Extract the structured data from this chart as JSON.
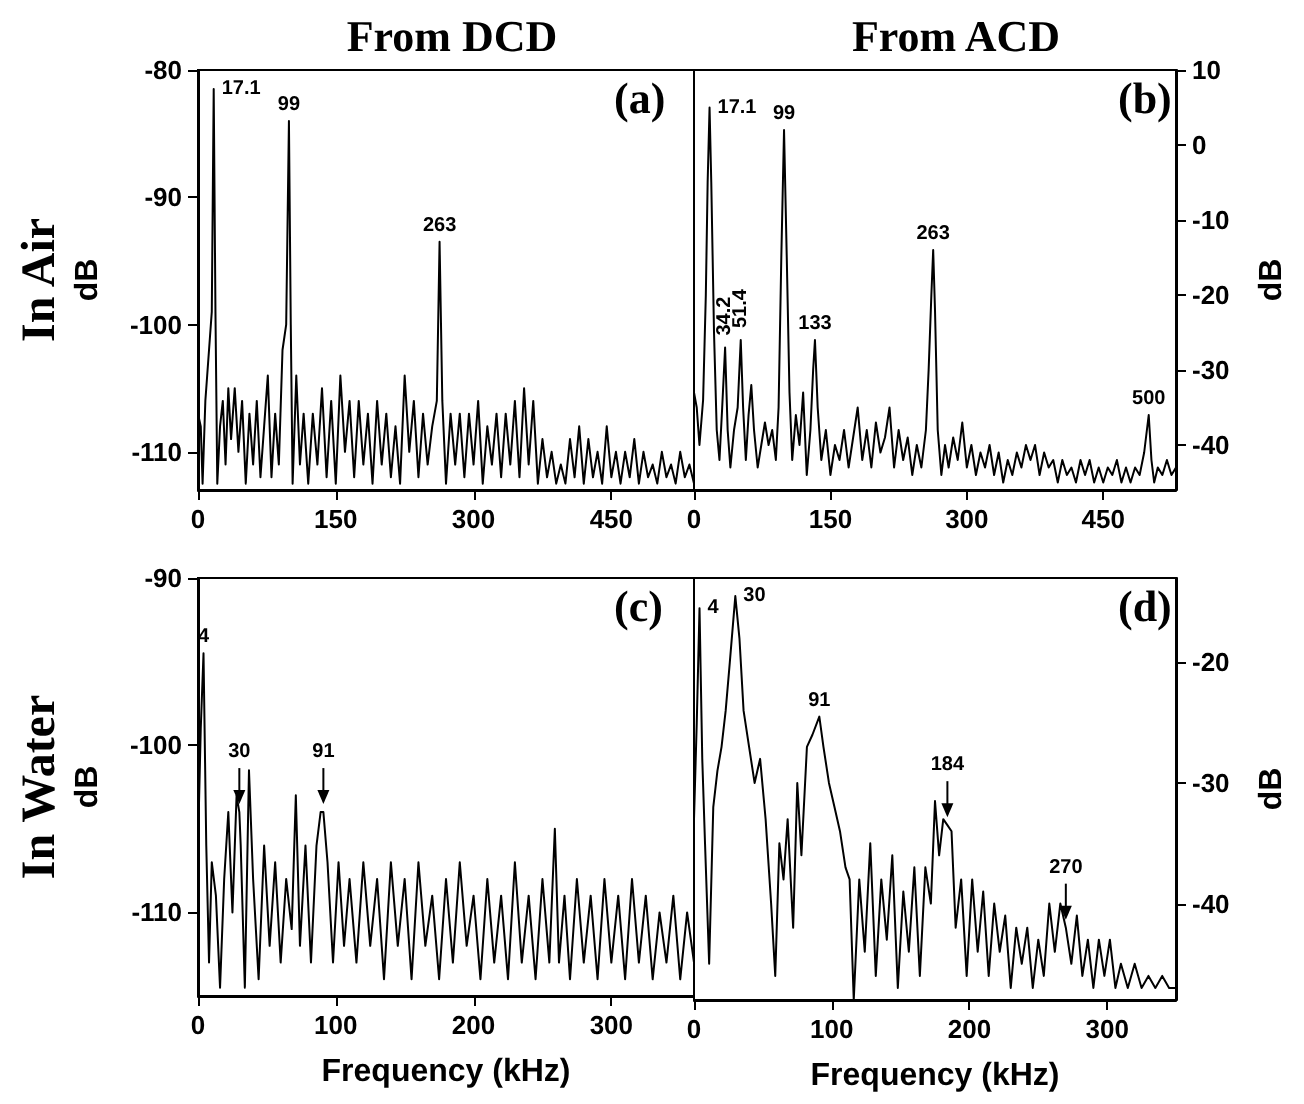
{
  "chart_data": [
    {
      "type": "line",
      "title": "From DCD",
      "ylabel": "In Air\ndB",
      "xlim": [
        0,
        540
      ],
      "xticks": [
        0,
        150,
        300,
        450
      ],
      "ylim": [
        -113,
        -80
      ],
      "yticks": [
        -110,
        -100,
        -90,
        -80
      ],
      "annotations": [
        "(a)",
        {
          "text": "17.1",
          "x": 17.1,
          "y": -81.5
        },
        {
          "text": "99",
          "x": 99,
          "y": -84
        },
        {
          "text": "263",
          "x": 263,
          "y": -93.5
        }
      ],
      "series": [
        {
          "color": "#000000",
          "x": [
            0,
            3,
            5,
            8,
            10,
            13,
            15,
            17.1,
            19,
            21,
            24,
            27,
            30,
            33,
            36,
            40,
            44,
            48,
            52,
            56,
            60,
            64,
            68,
            72,
            76,
            80,
            84,
            88,
            92,
            96,
            99,
            101,
            103,
            107,
            111,
            115,
            120,
            125,
            130,
            135,
            140,
            145,
            150,
            155,
            160,
            165,
            170,
            175,
            180,
            185,
            190,
            195,
            200,
            205,
            210,
            215,
            220,
            225,
            230,
            235,
            240,
            245,
            250,
            255,
            260,
            263,
            266,
            270,
            275,
            280,
            285,
            290,
            295,
            300,
            305,
            310,
            315,
            320,
            325,
            330,
            335,
            340,
            345,
            350,
            355,
            360,
            365,
            370,
            375,
            380,
            385,
            390,
            395,
            400,
            405,
            410,
            415,
            420,
            425,
            430,
            435,
            440,
            445,
            450,
            455,
            460,
            465,
            470,
            475,
            480,
            485,
            490,
            495,
            500,
            505,
            510,
            515,
            520,
            525,
            530,
            535,
            540
          ],
          "values": [
            -107,
            -108,
            -112.5,
            -106,
            -104,
            -101,
            -99,
            -81.5,
            -99,
            -112.5,
            -108,
            -106,
            -111,
            -105,
            -109,
            -105,
            -110,
            -106,
            -112.5,
            -107,
            -111,
            -106,
            -112,
            -108,
            -104,
            -112,
            -107,
            -111,
            -102,
            -100,
            -84,
            -100,
            -112.5,
            -104,
            -111,
            -107,
            -112.5,
            -107,
            -111,
            -105,
            -112,
            -106,
            -112.5,
            -104,
            -110,
            -106,
            -112,
            -106,
            -111,
            -107,
            -112.5,
            -106,
            -111,
            -107,
            -112,
            -108,
            -112.5,
            -104,
            -110,
            -106,
            -112,
            -107,
            -111,
            -108,
            -106,
            -93.5,
            -106,
            -112.5,
            -107,
            -111,
            -107,
            -112,
            -107,
            -111,
            -106,
            -112.5,
            -108,
            -111,
            -107,
            -112,
            -107,
            -111,
            -106,
            -112,
            -105,
            -111,
            -106,
            -112.5,
            -109,
            -112,
            -110,
            -112.5,
            -111,
            -112.5,
            -109,
            -112,
            -108,
            -112.5,
            -109,
            -112,
            -110,
            -112.5,
            -108,
            -112,
            -110,
            -112.5,
            -110,
            -112,
            -109,
            -112.5,
            -110,
            -112,
            -111,
            -112.5,
            -110,
            -112,
            -111,
            -112.5,
            -110,
            -112,
            -111,
            -112.5
          ]
        }
      ]
    },
    {
      "type": "line",
      "title": "From ACD",
      "ylabel": "dB",
      "xlim": [
        0,
        530
      ],
      "xticks": [
        0,
        150,
        300,
        450
      ],
      "ylim": [
        -46,
        10
      ],
      "yticks": [
        -40,
        -30,
        -20,
        -10,
        0,
        10
      ],
      "annotations": [
        "(b)",
        {
          "text": "17.1",
          "x": 17.1,
          "y": 5
        },
        {
          "text": "34.2",
          "x": 34.2,
          "y": -27
        },
        {
          "text": "51.4",
          "x": 51.4,
          "y": -26
        },
        {
          "text": "99",
          "x": 99,
          "y": 2
        },
        {
          "text": "133",
          "x": 133,
          "y": -26
        },
        {
          "text": "263",
          "x": 263,
          "y": -14
        },
        {
          "text": "500",
          "x": 500,
          "y": -36
        }
      ],
      "series": [
        {
          "color": "#000000",
          "x": [
            0,
            3,
            6,
            10,
            13,
            15,
            17.1,
            19,
            22,
            25,
            28,
            31,
            34.2,
            37,
            40,
            44,
            48,
            51.4,
            54,
            57,
            60,
            63,
            66,
            70,
            74,
            78,
            82,
            86,
            90,
            93,
            96,
            99,
            102,
            105,
            108,
            112,
            116,
            120,
            124,
            128,
            131,
            133,
            136,
            140,
            145,
            150,
            155,
            160,
            165,
            170,
            175,
            180,
            185,
            190,
            195,
            200,
            205,
            210,
            215,
            220,
            225,
            230,
            235,
            240,
            245,
            250,
            255,
            258,
            261,
            263,
            265,
            268,
            272,
            276,
            280,
            285,
            290,
            295,
            300,
            305,
            310,
            315,
            320,
            325,
            330,
            335,
            340,
            345,
            350,
            355,
            360,
            365,
            370,
            375,
            380,
            385,
            390,
            395,
            400,
            405,
            410,
            415,
            420,
            425,
            430,
            435,
            440,
            445,
            450,
            455,
            460,
            465,
            470,
            475,
            480,
            485,
            490,
            495,
            500,
            503,
            506,
            510,
            515,
            520,
            525,
            530
          ],
          "values": [
            -33,
            -35,
            -40,
            -34,
            -20,
            -5,
            5,
            -5,
            -25,
            -38,
            -42,
            -35,
            -27,
            -38,
            -43,
            -38,
            -35,
            -26,
            -35,
            -42,
            -36,
            -32,
            -38,
            -43,
            -40,
            -37,
            -40,
            -38,
            -42,
            -35,
            -15,
            2,
            -15,
            -33,
            -42,
            -36,
            -40,
            -33,
            -44,
            -38,
            -30,
            -26,
            -35,
            -42,
            -38,
            -44,
            -40,
            -42,
            -38,
            -43,
            -39,
            -35,
            -42,
            -38,
            -43,
            -37,
            -41,
            -39,
            -35,
            -43,
            -38,
            -42,
            -39,
            -44,
            -40,
            -43,
            -38,
            -30,
            -20,
            -14,
            -22,
            -38,
            -44,
            -40,
            -43,
            -39,
            -42,
            -37,
            -43,
            -40,
            -44,
            -41,
            -43,
            -40,
            -44,
            -41,
            -45,
            -42,
            -44,
            -41,
            -43,
            -40,
            -42,
            -40,
            -44,
            -41,
            -43,
            -42,
            -45,
            -42,
            -44,
            -43,
            -45,
            -42,
            -44,
            -42,
            -45,
            -43,
            -45,
            -43,
            -44,
            -42,
            -45,
            -43,
            -45,
            -43,
            -44,
            -41,
            -36,
            -42,
            -45,
            -43,
            -44,
            -42,
            -44,
            -43
          ]
        }
      ]
    },
    {
      "type": "line",
      "xlabel": "Frequency (kHz)",
      "ylabel": "In Water\ndB",
      "xlim": [
        0,
        360
      ],
      "xticks": [
        0,
        100,
        200,
        300
      ],
      "ylim": [
        -115,
        -90
      ],
      "yticks": [
        -110,
        -100,
        -90
      ],
      "annotations": [
        "(c)",
        {
          "text": "4",
          "x": 4,
          "y": -94.5
        },
        {
          "text": "30",
          "x": 30,
          "y": -104
        },
        {
          "text": "91",
          "x": 91,
          "y": -104
        }
      ],
      "series": [
        {
          "color": "#000000",
          "x": [
            0,
            2,
            4,
            6,
            8,
            10,
            13,
            16,
            19,
            22,
            25,
            28,
            30,
            31,
            34,
            37,
            40,
            44,
            48,
            52,
            56,
            60,
            64,
            68,
            71,
            74,
            78,
            82,
            86,
            89,
            91,
            94,
            98,
            102,
            106,
            110,
            115,
            120,
            125,
            130,
            135,
            140,
            145,
            150,
            155,
            160,
            165,
            170,
            175,
            180,
            185,
            190,
            195,
            200,
            205,
            210,
            215,
            220,
            225,
            230,
            235,
            240,
            245,
            250,
            255,
            259,
            262,
            266,
            270,
            275,
            280,
            285,
            290,
            295,
            300,
            305,
            310,
            315,
            320,
            325,
            330,
            335,
            340,
            345,
            350,
            355,
            360
          ],
          "values": [
            -106,
            -99,
            -94.5,
            -106,
            -113,
            -107,
            -109,
            -114.5,
            -108,
            -104,
            -110,
            -103,
            -104,
            -106,
            -114.5,
            -101.5,
            -108,
            -114,
            -106,
            -112,
            -107,
            -113,
            -108,
            -111,
            -103,
            -112,
            -106,
            -113,
            -106,
            -104,
            -104,
            -107,
            -113,
            -107,
            -112,
            -108,
            -113,
            -107,
            -112,
            -108,
            -114,
            -107,
            -112,
            -108,
            -114,
            -107,
            -112,
            -109,
            -114,
            -108,
            -113,
            -107,
            -112,
            -109,
            -114,
            -108,
            -113,
            -109,
            -114,
            -107,
            -113,
            -109,
            -114,
            -108,
            -113,
            -105,
            -113,
            -109,
            -114,
            -108,
            -113,
            -109,
            -114,
            -108,
            -113,
            -109,
            -114,
            -108,
            -113,
            -109,
            -114,
            -110,
            -113,
            -109,
            -114,
            -110,
            -113
          ]
        }
      ]
    },
    {
      "type": "line",
      "xlabel": "Frequency (kHz)",
      "ylabel": "dB",
      "xlim": [
        0,
        350
      ],
      "xticks": [
        0,
        100,
        200,
        300
      ],
      "ylim": [
        -48,
        -13
      ],
      "yticks": [
        -40,
        -30,
        -20
      ],
      "annotations": [
        "(d)",
        {
          "text": "4",
          "x": 4,
          "y": -15.5
        },
        {
          "text": "30",
          "x": 30,
          "y": -14.5
        },
        {
          "text": "91",
          "x": 91,
          "y": -24.5
        },
        {
          "text": "184",
          "x": 184,
          "y": -33.5
        },
        {
          "text": "270",
          "x": 270,
          "y": -42
        }
      ],
      "series": [
        {
          "color": "#000000",
          "x": [
            0,
            2,
            4,
            6,
            8,
            11,
            14,
            17,
            20,
            23,
            26,
            30,
            33,
            36,
            40,
            44,
            48,
            52,
            56,
            59,
            62,
            65,
            68,
            72,
            75,
            78,
            82,
            86,
            91,
            94,
            98,
            102,
            106,
            110,
            113,
            116,
            120,
            124,
            128,
            132,
            136,
            140,
            144,
            148,
            152,
            156,
            160,
            164,
            168,
            172,
            175,
            178,
            181,
            184,
            187,
            190,
            194,
            198,
            202,
            206,
            210,
            214,
            218,
            222,
            226,
            230,
            234,
            238,
            242,
            246,
            250,
            254,
            258,
            262,
            266,
            270,
            274,
            278,
            282,
            286,
            290,
            294,
            298,
            302,
            306,
            310,
            315,
            320,
            325,
            330,
            335,
            340,
            345,
            350
          ],
          "values": [
            -33,
            -25,
            -15.5,
            -28,
            -35,
            -45,
            -32,
            -29,
            -27,
            -24,
            -20,
            -14.5,
            -18,
            -24,
            -27,
            -30,
            -28,
            -33,
            -40,
            -46,
            -35,
            -38,
            -33,
            -42,
            -30,
            -36,
            -27,
            -26,
            -24.5,
            -27,
            -30,
            -32,
            -34,
            -37,
            -38,
            -48,
            -38,
            -44,
            -35,
            -46,
            -38,
            -43,
            -36,
            -47,
            -39,
            -44,
            -37,
            -46,
            -37,
            -40,
            -31.5,
            -36,
            -33,
            -33.5,
            -34,
            -42,
            -38,
            -46,
            -38,
            -44,
            -39,
            -46,
            -40,
            -44,
            -41,
            -47,
            -42,
            -45,
            -42,
            -47,
            -43,
            -46,
            -40,
            -44,
            -40,
            -42,
            -45,
            -41,
            -46,
            -43,
            -47,
            -43,
            -46,
            -43,
            -47,
            -45,
            -47,
            -45,
            -47,
            -46,
            -47,
            -46,
            -47,
            -47
          ]
        }
      ]
    }
  ]
}
